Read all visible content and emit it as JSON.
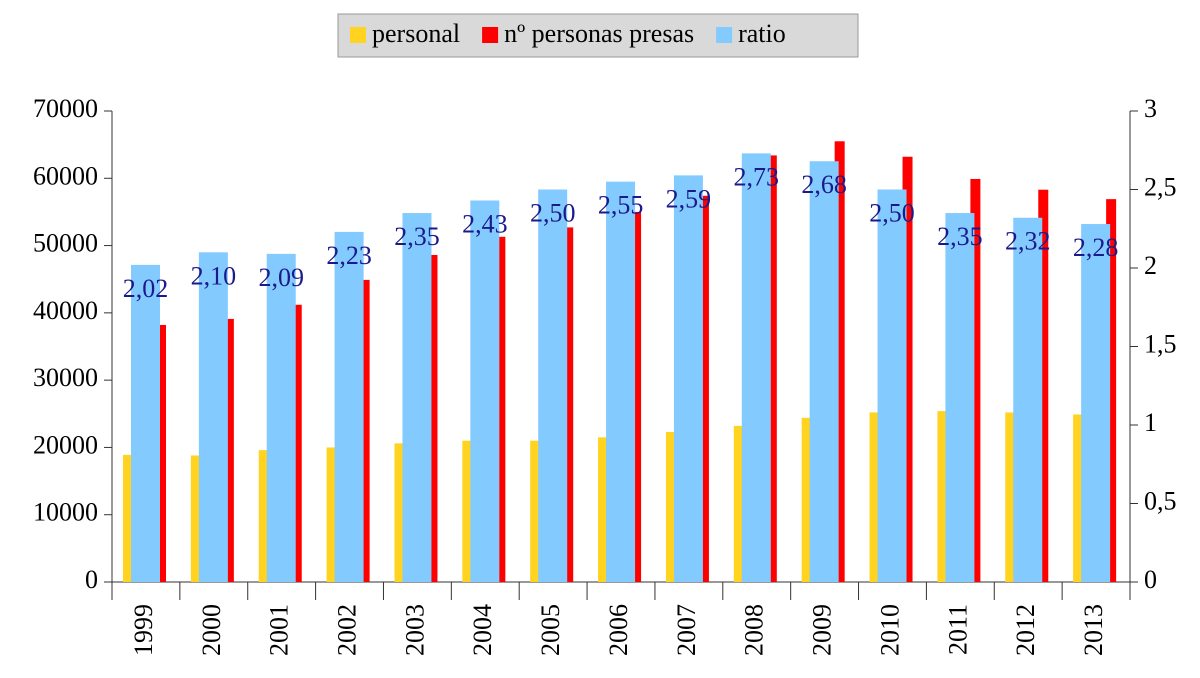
{
  "chart_data": {
    "type": "bar",
    "legend": "top",
    "categories": [
      "1999",
      "2000",
      "2001",
      "2002",
      "2003",
      "2004",
      "2005",
      "2006",
      "2007",
      "2008",
      "2009",
      "2010",
      "2011",
      "2012",
      "2013"
    ],
    "series": [
      {
        "name": "personal",
        "color": "#ffd320",
        "values": [
          18900,
          18800,
          19600,
          20000,
          20600,
          21000,
          21000,
          21500,
          22300,
          23200,
          24400,
          25200,
          25400,
          25200,
          24900
        ]
      },
      {
        "name": "nº personas presas",
        "color": "#ff0000",
        "values": [
          38200,
          39100,
          41200,
          44900,
          48600,
          51300,
          52700,
          55000,
          57400,
          63400,
          65500,
          63200,
          59900,
          58300,
          56900
        ]
      },
      {
        "name": "ratio",
        "color": "#83caff",
        "axis": "y2",
        "values": [
          2.02,
          2.1,
          2.09,
          2.23,
          2.35,
          2.43,
          2.5,
          2.55,
          2.59,
          2.73,
          2.68,
          2.5,
          2.35,
          2.32,
          2.28
        ],
        "value_labels": [
          "2,02",
          "2,10",
          "2,09",
          "2,23",
          "2,35",
          "2,43",
          "2,50",
          "2,55",
          "2,59",
          "2,73",
          "2,68",
          "2,50",
          "2,35",
          "2,32",
          "2,28"
        ]
      }
    ],
    "ylim": [
      0,
      70000
    ],
    "yticks": [
      0,
      10000,
      20000,
      30000,
      40000,
      50000,
      60000,
      70000
    ],
    "y2lim": [
      0,
      3
    ],
    "y2ticks": [
      0,
      {
        "value": 0.5,
        "label": "0,5"
      },
      1,
      {
        "value": 1.5,
        "label": "1,5"
      },
      2,
      {
        "value": 2.5,
        "label": "2,5"
      },
      3
    ],
    "grid": false
  }
}
